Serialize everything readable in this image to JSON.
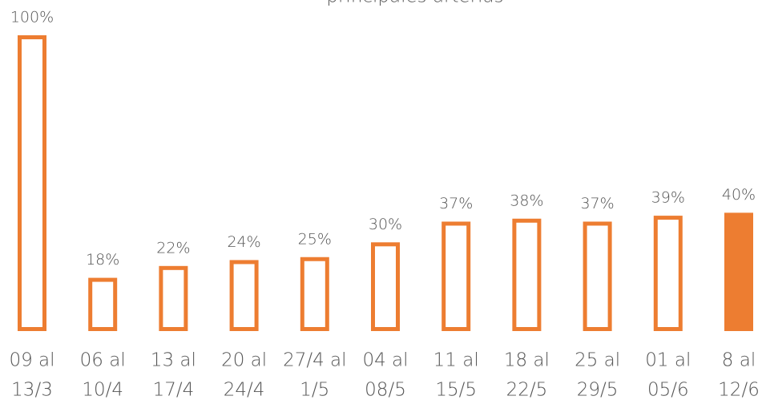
{
  "chart_data": {
    "type": "bar",
    "title": "principales arterias",
    "categories": [
      [
        "09 al",
        "13/3"
      ],
      [
        "06 al",
        "10/4"
      ],
      [
        "13 al",
        "17/4"
      ],
      [
        "20 al",
        "24/4"
      ],
      [
        "27/4 al",
        "1/5"
      ],
      [
        "04 al",
        "08/5"
      ],
      [
        "11 al",
        "15/5"
      ],
      [
        "18 al",
        "22/5"
      ],
      [
        "25 al",
        "29/5"
      ],
      [
        "01 al",
        "05/6"
      ],
      [
        "8 al",
        "12/6"
      ]
    ],
    "values": [
      100,
      18,
      22,
      24,
      25,
      30,
      37,
      38,
      37,
      39,
      40
    ],
    "value_labels": [
      "100%",
      "18%",
      "22%",
      "24%",
      "25%",
      "30%",
      "37%",
      "38%",
      "37%",
      "39%",
      "40%"
    ],
    "color": "#ed7d31",
    "styles": [
      "outline",
      "outline",
      "outline",
      "outline",
      "outline",
      "outline",
      "outline",
      "outline",
      "outline",
      "outline",
      "solid"
    ]
  }
}
